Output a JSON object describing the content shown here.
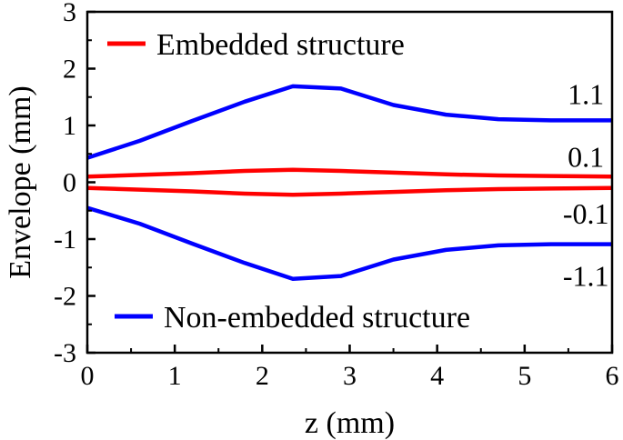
{
  "chart_data": {
    "type": "line",
    "xlabel": "z (mm)",
    "ylabel": "Envelope (mm)",
    "xlim": [
      0,
      6
    ],
    "ylim": [
      -3,
      3
    ],
    "xticks": [
      0,
      1,
      2,
      3,
      4,
      5,
      6
    ],
    "yticks": [
      3,
      2,
      1,
      0,
      -1,
      -2,
      -3
    ],
    "grid": false,
    "legend": [
      {
        "label": "Embedded structure",
        "color": "#ff0000",
        "placement": "top-left"
      },
      {
        "label": "Non-embedded structure",
        "color": "#0000ff",
        "placement": "bottom-left"
      }
    ],
    "annotations": [
      {
        "text": "1.1",
        "x": 5.7,
        "y": 1.55
      },
      {
        "text": "0.1",
        "x": 5.7,
        "y": 0.45
      },
      {
        "text": "-0.1",
        "x": 5.7,
        "y": -0.55
      },
      {
        "text": "-1.1",
        "x": 5.7,
        "y": -1.65
      }
    ],
    "series": [
      {
        "group": "Embedded structure",
        "color": "#ff0000",
        "x": [
          0,
          0.6,
          1.2,
          1.8,
          2.35,
          2.9,
          3.5,
          4.1,
          4.7,
          5.3,
          6
        ],
        "y": [
          0.1,
          0.13,
          0.16,
          0.2,
          0.22,
          0.2,
          0.17,
          0.14,
          0.12,
          0.11,
          0.1
        ]
      },
      {
        "group": "Embedded structure",
        "color": "#ff0000",
        "x": [
          0,
          0.6,
          1.2,
          1.8,
          2.35,
          2.9,
          3.5,
          4.1,
          4.7,
          5.3,
          6
        ],
        "y": [
          -0.1,
          -0.13,
          -0.16,
          -0.2,
          -0.22,
          -0.2,
          -0.17,
          -0.14,
          -0.12,
          -0.11,
          -0.1
        ]
      },
      {
        "group": "Non-embedded structure",
        "color": "#0000ff",
        "x": [
          0,
          0.6,
          1.2,
          1.8,
          2.35,
          2.9,
          3.5,
          4.1,
          4.7,
          5.3,
          6
        ],
        "y": [
          0.43,
          0.73,
          1.08,
          1.42,
          1.69,
          1.65,
          1.36,
          1.19,
          1.11,
          1.09,
          1.09
        ]
      },
      {
        "group": "Non-embedded structure",
        "color": "#0000ff",
        "x": [
          0,
          0.6,
          1.2,
          1.8,
          2.35,
          2.9,
          3.5,
          4.1,
          4.7,
          5.3,
          6
        ],
        "y": [
          -0.45,
          -0.73,
          -1.08,
          -1.42,
          -1.7,
          -1.65,
          -1.36,
          -1.19,
          -1.11,
          -1.09,
          -1.09
        ]
      }
    ]
  }
}
